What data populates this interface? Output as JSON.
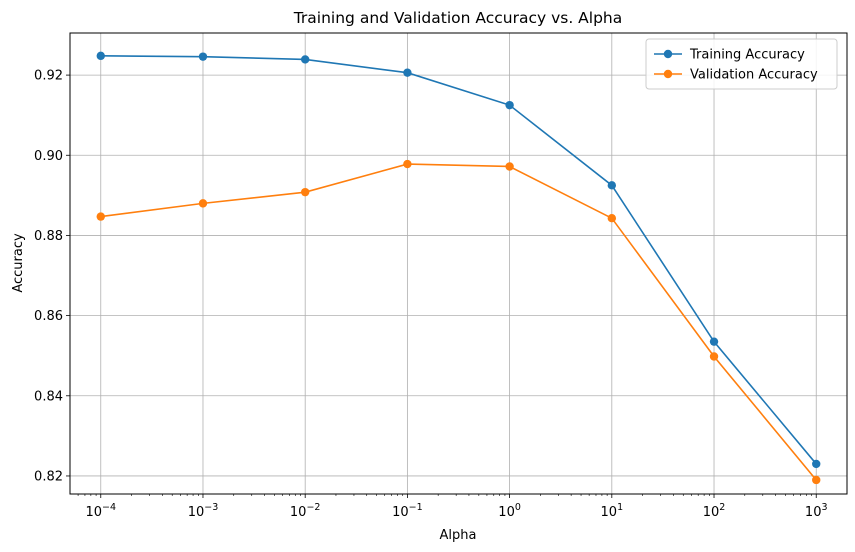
{
  "chart_data": {
    "type": "line",
    "title": "Training and Validation Accuracy vs. Alpha",
    "xlabel": "Alpha",
    "ylabel": "Accuracy",
    "x_scale": "log",
    "x": [
      0.0001,
      0.001,
      0.01,
      0.1,
      1,
      10,
      100,
      1000
    ],
    "x_tick_labels": [
      {
        "base": "10",
        "exp": "−4"
      },
      {
        "base": "10",
        "exp": "−3"
      },
      {
        "base": "10",
        "exp": "−2"
      },
      {
        "base": "10",
        "exp": "−1"
      },
      {
        "base": "10",
        "exp": "0"
      },
      {
        "base": "10",
        "exp": "1"
      },
      {
        "base": "10",
        "exp": "2"
      },
      {
        "base": "10",
        "exp": "3"
      }
    ],
    "y_ticks": [
      0.82,
      0.84,
      0.86,
      0.88,
      0.9,
      0.92
    ],
    "y_tick_labels": [
      "0.82",
      "0.84",
      "0.86",
      "0.88",
      "0.90",
      "0.92"
    ],
    "xlim": [
      5e-05,
      2000
    ],
    "ylim": [
      0.8155,
      0.9305
    ],
    "grid": true,
    "legend_position": "top-right",
    "series": [
      {
        "name": "Training Accuracy",
        "color": "#1f77b4",
        "marker": "circle",
        "values": [
          0.9248,
          0.9246,
          0.9239,
          0.9206,
          0.9125,
          0.8925,
          0.8535,
          0.823
        ]
      },
      {
        "name": "Validation Accuracy",
        "color": "#ff7f0e",
        "marker": "circle",
        "values": [
          0.8847,
          0.888,
          0.8908,
          0.8978,
          0.8972,
          0.8843,
          0.8498,
          0.819
        ]
      }
    ]
  }
}
